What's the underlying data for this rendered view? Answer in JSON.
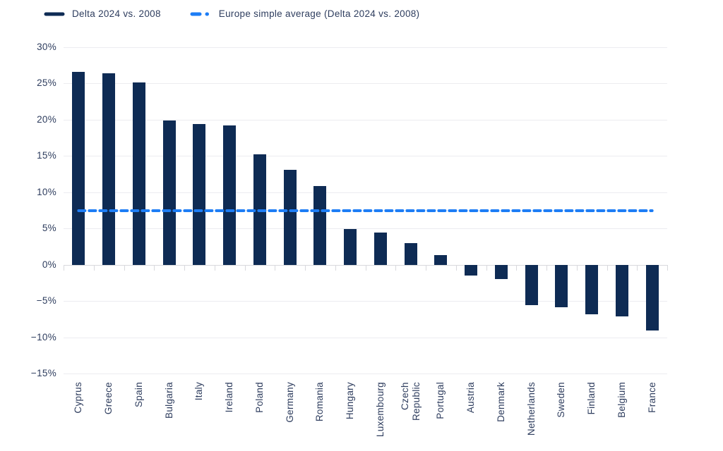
{
  "chart_data": {
    "type": "bar",
    "title": "",
    "xlabel": "",
    "ylabel": "",
    "categories": [
      "Cyprus",
      "Greece",
      "Spain",
      "Bulgaria",
      "Italy",
      "Ireland",
      "Poland",
      "Germany",
      "Romania",
      "Hungary",
      "Luxembourg",
      "Czech Republic",
      "Portugal",
      "Austria",
      "Denmark",
      "Netherlands",
      "Sweden",
      "Finland",
      "Belgium",
      "France"
    ],
    "series": [
      {
        "name": "Delta 2024 vs. 2008",
        "values": [
          26.6,
          26.4,
          25.1,
          19.9,
          19.4,
          19.2,
          15.2,
          13.1,
          10.9,
          4.9,
          4.4,
          3.0,
          1.3,
          -1.5,
          -2.0,
          -5.6,
          -5.9,
          -6.8,
          -7.1,
          -9.1
        ]
      }
    ],
    "average": {
      "label": "Europe simple average (Delta 2024 vs. 2008)",
      "value": 7.5
    },
    "ylim": [
      -15,
      30
    ],
    "yticks": [
      30,
      25,
      20,
      15,
      10,
      5,
      0,
      -5,
      -10,
      -15
    ],
    "ytick_suffix": "%",
    "grid": "horizontal",
    "legend_position": "top-left",
    "colors": {
      "bar": "#0e2b54",
      "average_line": "#1d7df5",
      "text": "#2e3d5e",
      "gridline": "#ececf0",
      "axis_line": "#d8d9dd",
      "background": "#ffffff"
    }
  }
}
